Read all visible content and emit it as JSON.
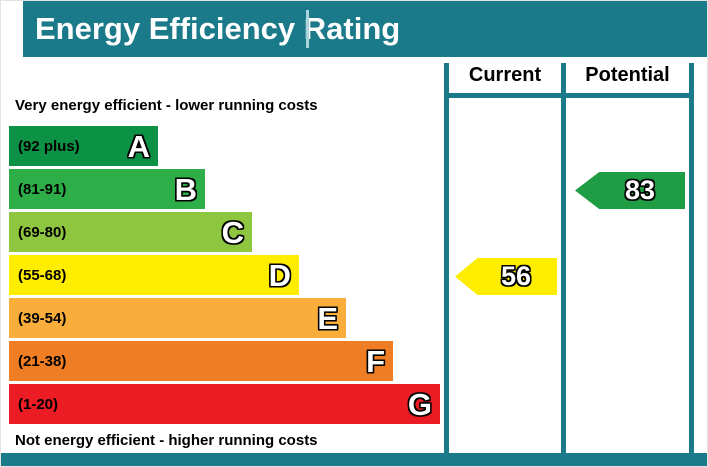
{
  "header": {
    "title": "Energy Efficiency Rating"
  },
  "columns": {
    "current": "Current",
    "potential": "Potential"
  },
  "notes": {
    "top": "Very energy efficient - lower running costs",
    "bottom": "Not energy efficient - higher running costs"
  },
  "colors": {
    "teal": "#1a7a8a",
    "title_text": "#ffffff",
    "title_divider": "#aad4dd"
  },
  "chart_data": {
    "type": "bar",
    "title": "Energy Efficiency Rating",
    "categories": [
      "A",
      "B",
      "C",
      "D",
      "E",
      "F",
      "G"
    ],
    "bands": [
      {
        "letter": "A",
        "range": "(92 plus)",
        "color": "#0c9245"
      },
      {
        "letter": "B",
        "range": "(81-91)",
        "color": "#2dae49"
      },
      {
        "letter": "C",
        "range": "(69-80)",
        "color": "#8ec63f"
      },
      {
        "letter": "D",
        "range": "(55-68)",
        "color": "#ffed00"
      },
      {
        "letter": "E",
        "range": "(39-54)",
        "color": "#f9ae3b"
      },
      {
        "letter": "F",
        "range": "(21-38)",
        "color": "#ef7d23"
      },
      {
        "letter": "G",
        "range": "(1-20)",
        "color": "#ec1c24"
      }
    ],
    "current": {
      "value": "56",
      "band": "D",
      "color": "#ffed00"
    },
    "potential": {
      "value": "83",
      "band": "B",
      "color": "#1f9d45"
    }
  }
}
